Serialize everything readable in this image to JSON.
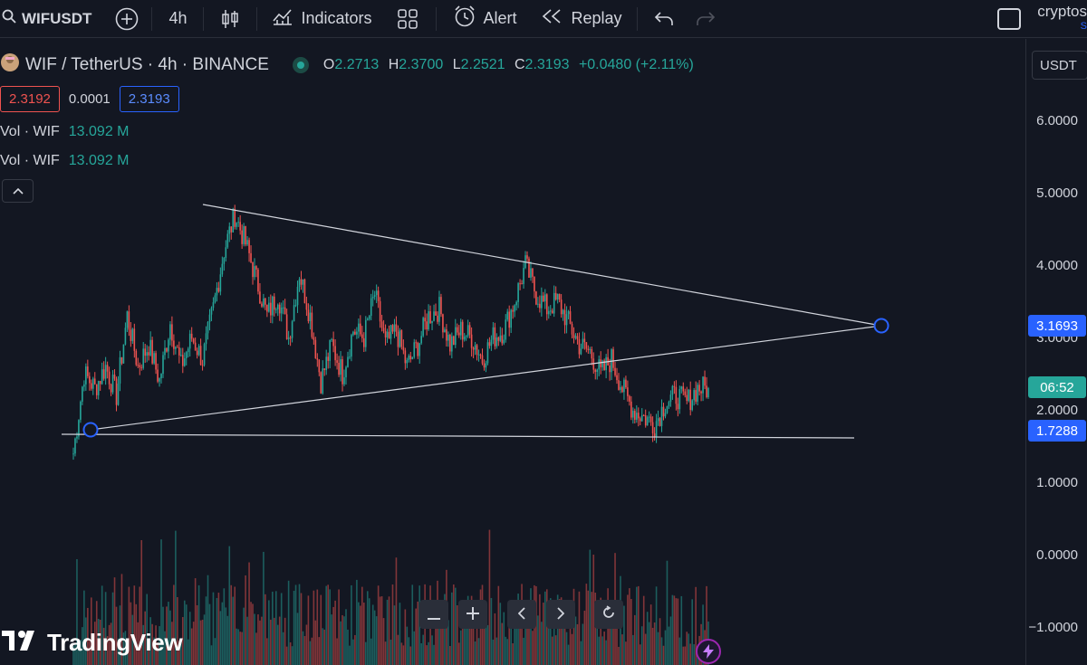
{
  "toolbar": {
    "symbol": "WIFUSDT",
    "interval": "4h",
    "indicators_label": "Indicators",
    "alert_label": "Alert",
    "replay_label": "Replay",
    "user_name": "cryptos",
    "user_sub": "S"
  },
  "legend": {
    "title": "WIF / TetherUS · 4h · BINANCE",
    "open_key": "O",
    "open": "2.2713",
    "high_key": "H",
    "high": "2.3700",
    "low_key": "L",
    "low": "2.2521",
    "close_key": "C",
    "close": "2.3193",
    "change": "+0.0480 (+2.11%)",
    "bid": "2.3192",
    "spread": "0.0001",
    "ask": "2.3193",
    "vol1_label": "Vol · WIF",
    "vol1_value": "13.092 M",
    "vol2_label": "Vol · WIF",
    "vol2_value": "13.092 M"
  },
  "price_axis": {
    "currency": "USDT",
    "ticks": [
      "6.0000",
      "5.0000",
      "4.0000",
      "3.0000",
      "2.0000",
      "1.0000",
      "0.0000",
      "−1.0000"
    ],
    "tag_apex": "3.1693",
    "tag_countdown": "06:52",
    "tag_support": "1.7288"
  },
  "brand": {
    "name": "TradingView"
  },
  "colors": {
    "up": "#26a69a",
    "down": "#ef5350",
    "accent": "#2962ff",
    "line": "#d1d4dc"
  },
  "chart_data": {
    "type": "candlestick",
    "title": "WIF / TetherUS · 4h · BINANCE",
    "ylim": [
      -1.2,
      6.6
    ],
    "y_ticks": [
      6,
      5,
      4,
      3,
      2,
      1,
      0,
      -1
    ],
    "last_close": 2.3193,
    "series_close_approx": [
      1.4,
      2.5,
      2.3,
      2.6,
      2.2,
      3.3,
      2.6,
      2.9,
      2.4,
      3.2,
      2.6,
      3.0,
      2.7,
      3.4,
      4.2,
      4.7,
      4.3,
      3.8,
      3.3,
      3.6,
      3.0,
      3.9,
      3.3,
      2.4,
      2.9,
      2.5,
      3.1,
      3.0,
      3.6,
      2.9,
      3.1,
      2.6,
      2.9,
      3.3,
      3.4,
      2.9,
      3.1,
      3.0,
      2.7,
      3.0,
      3.1,
      3.5,
      4.0,
      3.6,
      3.4,
      3.5,
      3.2,
      2.9,
      2.8,
      2.5,
      2.7,
      2.3,
      2.0,
      1.9,
      1.8,
      2.1,
      2.2,
      2.1,
      2.3,
      2.3
    ],
    "drawings": {
      "upper_trendline": [
        [
          4.85,
          3.17
        ]
      ],
      "lower_trendline": [
        [
          1.82,
          3.17
        ]
      ],
      "support": 1.73
    }
  }
}
